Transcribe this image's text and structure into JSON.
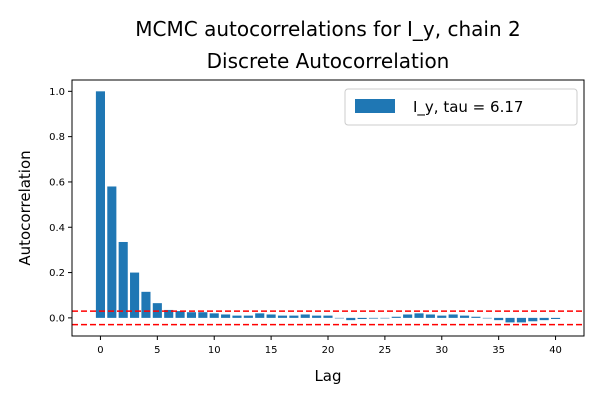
{
  "chart_data": {
    "type": "bar",
    "title": "MCMC autocorrelations for I_y, chain 2",
    "subtitle": "Discrete Autocorrelation",
    "xlabel": "Lag",
    "ylabel": "Autocorrelation",
    "xlim": [
      -2.5,
      42.5
    ],
    "ylim": [
      -0.08,
      1.05
    ],
    "xticks": [
      0,
      5,
      10,
      15,
      20,
      25,
      30,
      35,
      40
    ],
    "yticks": [
      0.0,
      0.2,
      0.4,
      0.6,
      0.8,
      1.0
    ],
    "ytick_labels": [
      "0.0",
      "0.2",
      "0.4",
      "0.6",
      "0.8",
      "1.0"
    ],
    "grid": false,
    "legend": {
      "placement": "top-right",
      "entries": [
        "I_y, tau = 6.17"
      ]
    },
    "series": [
      {
        "name": "I_y, tau = 6.17",
        "color": "#1f77b4",
        "x": [
          0,
          1,
          2,
          3,
          4,
          5,
          6,
          7,
          8,
          9,
          10,
          11,
          12,
          13,
          14,
          15,
          16,
          17,
          18,
          19,
          20,
          21,
          22,
          23,
          24,
          25,
          26,
          27,
          28,
          29,
          30,
          31,
          32,
          33,
          34,
          35,
          36,
          37,
          38,
          39,
          40
        ],
        "values": [
          1.0,
          0.58,
          0.335,
          0.2,
          0.115,
          0.065,
          0.035,
          0.03,
          0.025,
          0.025,
          0.02,
          0.015,
          0.01,
          0.01,
          0.02,
          0.015,
          0.01,
          0.01,
          0.015,
          0.01,
          0.01,
          0.0,
          -0.01,
          -0.005,
          -0.003,
          0.0,
          0.005,
          0.015,
          0.02,
          0.015,
          0.01,
          0.015,
          0.01,
          0.005,
          0.0,
          -0.01,
          -0.02,
          -0.02,
          -0.015,
          -0.01,
          -0.005
        ]
      }
    ],
    "reference_lines": [
      {
        "y": 0.03,
        "color": "#ff0000",
        "style": "dashed"
      },
      {
        "y": -0.03,
        "color": "#ff0000",
        "style": "dashed"
      }
    ]
  }
}
